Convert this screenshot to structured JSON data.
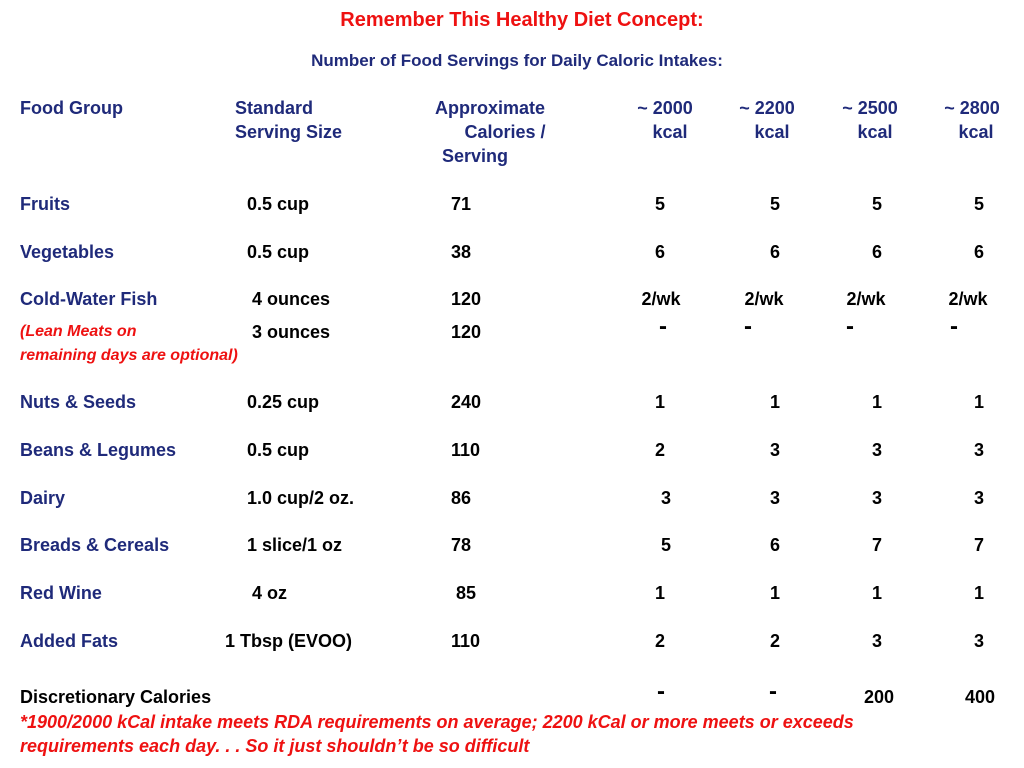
{
  "title": "Remember This Healthy Diet Concept:",
  "subtitle": "Number of Food Servings for Daily Caloric Intakes:",
  "headers": {
    "food_group": "Food Group",
    "serving_line1": "Standard",
    "serving_line2": "Serving Size",
    "calories_line1": "Approximate",
    "calories_line2": "Calories /",
    "calories_line3": "Serving",
    "kcal2000_line1": "~ 2000",
    "kcal2200_line1": "~ 2200",
    "kcal2500_line1": "~ 2500",
    "kcal2800_line1": "~ 2800",
    "kcal_line2": "kcal"
  },
  "rows": [
    {
      "name": "Fruits",
      "serving": "0.5 cup",
      "calories": "71",
      "s2000": "5",
      "s2200": "5",
      "s2500": "5",
      "s2800": "5"
    },
    {
      "name": "Vegetables",
      "serving": "0.5 cup",
      "calories": "38",
      "s2000": "6",
      "s2200": "6",
      "s2500": "6",
      "s2800": "6"
    },
    {
      "name": "Cold-Water Fish",
      "serving": "4 ounces",
      "calories": "120",
      "s2000": "2/wk",
      "s2200": "2/wk",
      "s2500": "2/wk",
      "s2800": "2/wk"
    },
    {
      "name_line1": "(Lean Meats on",
      "name_line2": "remaining days are optional)",
      "serving": "3 ounces",
      "calories": "120",
      "s2000": "-",
      "s2200": "-",
      "s2500": "-",
      "s2800": "-"
    },
    {
      "name": "Nuts & Seeds",
      "serving": "0.25 cup",
      "calories": "240",
      "s2000": "1",
      "s2200": "1",
      "s2500": "1",
      "s2800": "1"
    },
    {
      "name": "Beans & Legumes",
      "serving": "0.5 cup",
      "calories": "110",
      "s2000": "2",
      "s2200": "3",
      "s2500": "3",
      "s2800": "3"
    },
    {
      "name": "Dairy",
      "serving": "1.0 cup/2 oz.",
      "calories": "86",
      "s2000": "3",
      "s2200": "3",
      "s2500": "3",
      "s2800": "3"
    },
    {
      "name": "Breads & Cereals",
      "serving": "1 slice/1 oz",
      "calories": "78",
      "s2000": "5",
      "s2200": "6",
      "s2500": "7",
      "s2800": "7"
    },
    {
      "name": "Red Wine",
      "serving": "4 oz",
      "calories": "85",
      "s2000": "1",
      "s2200": "1",
      "s2500": "1",
      "s2800": "1"
    },
    {
      "name": "Added Fats",
      "serving": "1 Tbsp (EVOO)",
      "calories": "110",
      "s2000": "2",
      "s2200": "2",
      "s2500": "3",
      "s2800": "3"
    }
  ],
  "discretionary": {
    "label": "Discretionary Calories",
    "s2000": "-",
    "s2200": "-",
    "s2500": "200",
    "s2800": "400"
  },
  "footnote_line1": "*1900/2000 kCal intake meets RDA requirements on average; 2200 kCal or more meets or exceeds",
  "footnote_line2": "requirements each day. . . So it just shouldn’t be so difficult"
}
